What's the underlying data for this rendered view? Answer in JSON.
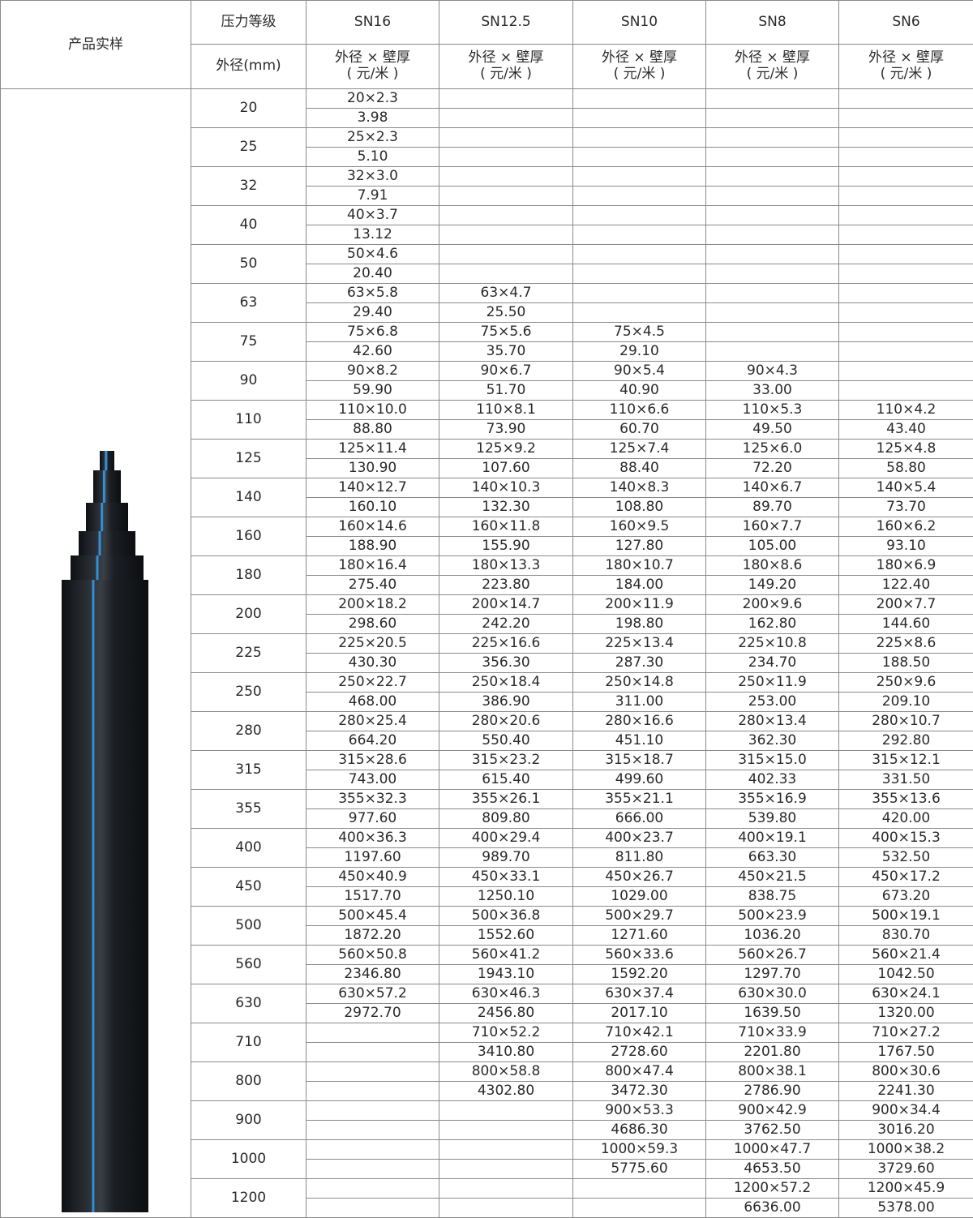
{
  "header": {
    "sample_label": "产品实样",
    "pressure_label": "压力等级",
    "od_label": "外径(mm)",
    "grades": [
      "SN16",
      "SN12.5",
      "SN10",
      "SN8",
      "SN6"
    ],
    "spec_label": "外径 × 壁厚",
    "unit_label": "( 元/米 )"
  },
  "pipe_image": {
    "pipe_color": "#1c1f24",
    "stripe_color": "#2f8fd8"
  },
  "rows": [
    {
      "od": "20",
      "cells": [
        [
          "20×2.3",
          "3.98"
        ],
        [],
        [],
        [],
        []
      ]
    },
    {
      "od": "25",
      "cells": [
        [
          "25×2.3",
          "5.10"
        ],
        [],
        [],
        [],
        []
      ]
    },
    {
      "od": "32",
      "cells": [
        [
          "32×3.0",
          "7.91"
        ],
        [],
        [],
        [],
        []
      ]
    },
    {
      "od": "40",
      "cells": [
        [
          "40×3.7",
          "13.12"
        ],
        [],
        [],
        [],
        []
      ]
    },
    {
      "od": "50",
      "cells": [
        [
          "50×4.6",
          "20.40"
        ],
        [],
        [],
        [],
        []
      ]
    },
    {
      "od": "63",
      "cells": [
        [
          "63×5.8",
          "29.40"
        ],
        [
          "63×4.7",
          "25.50"
        ],
        [],
        [],
        []
      ]
    },
    {
      "od": "75",
      "cells": [
        [
          "75×6.8",
          "42.60"
        ],
        [
          "75×5.6",
          "35.70"
        ],
        [
          "75×4.5",
          "29.10"
        ],
        [],
        []
      ]
    },
    {
      "od": "90",
      "cells": [
        [
          "90×8.2",
          "59.90"
        ],
        [
          "90×6.7",
          "51.70"
        ],
        [
          "90×5.4",
          "40.90"
        ],
        [
          "90×4.3",
          "33.00"
        ],
        []
      ]
    },
    {
      "od": "110",
      "cells": [
        [
          "110×10.0",
          "88.80"
        ],
        [
          "110×8.1",
          "73.90"
        ],
        [
          "110×6.6",
          "60.70"
        ],
        [
          "110×5.3",
          "49.50"
        ],
        [
          "110×4.2",
          "43.40"
        ]
      ]
    },
    {
      "od": "125",
      "cells": [
        [
          "125×11.4",
          "130.90"
        ],
        [
          "125×9.2",
          "107.60"
        ],
        [
          "125×7.4",
          "88.40"
        ],
        [
          "125×6.0",
          "72.20"
        ],
        [
          "125×4.8",
          "58.80"
        ]
      ]
    },
    {
      "od": "140",
      "cells": [
        [
          "140×12.7",
          "160.10"
        ],
        [
          "140×10.3",
          "132.30"
        ],
        [
          "140×8.3",
          "108.80"
        ],
        [
          "140×6.7",
          "89.70"
        ],
        [
          "140×5.4",
          "73.70"
        ]
      ]
    },
    {
      "od": "160",
      "cells": [
        [
          "160×14.6",
          "188.90"
        ],
        [
          "160×11.8",
          "155.90"
        ],
        [
          "160×9.5",
          "127.80"
        ],
        [
          "160×7.7",
          "105.00"
        ],
        [
          "160×6.2",
          "93.10"
        ]
      ]
    },
    {
      "od": "180",
      "cells": [
        [
          "180×16.4",
          "275.40"
        ],
        [
          "180×13.3",
          "223.80"
        ],
        [
          "180×10.7",
          "184.00"
        ],
        [
          "180×8.6",
          "149.20"
        ],
        [
          "180×6.9",
          "122.40"
        ]
      ]
    },
    {
      "od": "200",
      "cells": [
        [
          "200×18.2",
          "298.60"
        ],
        [
          "200×14.7",
          "242.20"
        ],
        [
          "200×11.9",
          "198.80"
        ],
        [
          "200×9.6",
          "162.80"
        ],
        [
          "200×7.7",
          "144.60"
        ]
      ]
    },
    {
      "od": "225",
      "cells": [
        [
          "225×20.5",
          "430.30"
        ],
        [
          "225×16.6",
          "356.30"
        ],
        [
          "225×13.4",
          "287.30"
        ],
        [
          "225×10.8",
          "234.70"
        ],
        [
          "225×8.6",
          "188.50"
        ]
      ]
    },
    {
      "od": "250",
      "cells": [
        [
          "250×22.7",
          "468.00"
        ],
        [
          "250×18.4",
          "386.90"
        ],
        [
          "250×14.8",
          "311.00"
        ],
        [
          "250×11.9",
          "253.00"
        ],
        [
          "250×9.6",
          "209.10"
        ]
      ]
    },
    {
      "od": "280",
      "cells": [
        [
          "280×25.4",
          "664.20"
        ],
        [
          "280×20.6",
          "550.40"
        ],
        [
          "280×16.6",
          "451.10"
        ],
        [
          "280×13.4",
          "362.30"
        ],
        [
          "280×10.7",
          "292.80"
        ]
      ]
    },
    {
      "od": "315",
      "cells": [
        [
          "315×28.6",
          "743.00"
        ],
        [
          "315×23.2",
          "615.40"
        ],
        [
          "315×18.7",
          "499.60"
        ],
        [
          "315×15.0",
          "402.33"
        ],
        [
          "315×12.1",
          "331.50"
        ]
      ]
    },
    {
      "od": "355",
      "cells": [
        [
          "355×32.3",
          "977.60"
        ],
        [
          "355×26.1",
          "809.80"
        ],
        [
          "355×21.1",
          "666.00"
        ],
        [
          "355×16.9",
          "539.80"
        ],
        [
          "355×13.6",
          "420.00"
        ]
      ]
    },
    {
      "od": "400",
      "cells": [
        [
          "400×36.3",
          "1197.60"
        ],
        [
          "400×29.4",
          "989.70"
        ],
        [
          "400×23.7",
          "811.80"
        ],
        [
          "400×19.1",
          "663.30"
        ],
        [
          "400×15.3",
          "532.50"
        ]
      ]
    },
    {
      "od": "450",
      "cells": [
        [
          "450×40.9",
          "1517.70"
        ],
        [
          "450×33.1",
          "1250.10"
        ],
        [
          "450×26.7",
          "1029.00"
        ],
        [
          "450×21.5",
          "838.75"
        ],
        [
          "450×17.2",
          "673.20"
        ]
      ]
    },
    {
      "od": "500",
      "cells": [
        [
          "500×45.4",
          "1872.20"
        ],
        [
          "500×36.8",
          "1552.60"
        ],
        [
          "500×29.7",
          "1271.60"
        ],
        [
          "500×23.9",
          "1036.20"
        ],
        [
          "500×19.1",
          "830.70"
        ]
      ]
    },
    {
      "od": "560",
      "cells": [
        [
          "560×50.8",
          "2346.80"
        ],
        [
          "560×41.2",
          "1943.10"
        ],
        [
          "560×33.6",
          "1592.20"
        ],
        [
          "560×26.7",
          "1297.70"
        ],
        [
          "560×21.4",
          "1042.50"
        ]
      ]
    },
    {
      "od": "630",
      "cells": [
        [
          "630×57.2",
          "2972.70"
        ],
        [
          "630×46.3",
          "2456.80"
        ],
        [
          "630×37.4",
          "2017.10"
        ],
        [
          "630×30.0",
          "1639.50"
        ],
        [
          "630×24.1",
          "1320.00"
        ]
      ]
    },
    {
      "od": "710",
      "cells": [
        [],
        [
          "710×52.2",
          "3410.80"
        ],
        [
          "710×42.1",
          "2728.60"
        ],
        [
          "710×33.9",
          "2201.80"
        ],
        [
          "710×27.2",
          "1767.50"
        ]
      ]
    },
    {
      "od": "800",
      "cells": [
        [],
        [
          "800×58.8",
          "4302.80"
        ],
        [
          "800×47.4",
          "3472.30"
        ],
        [
          "800×38.1",
          "2786.90"
        ],
        [
          "800×30.6",
          "2241.30"
        ]
      ]
    },
    {
      "od": "900",
      "cells": [
        [],
        [],
        [
          "900×53.3",
          "4686.30"
        ],
        [
          "900×42.9",
          "3762.50"
        ],
        [
          "900×34.4",
          "3016.20"
        ]
      ]
    },
    {
      "od": "1000",
      "cells": [
        [],
        [],
        [
          "1000×59.3",
          "5775.60"
        ],
        [
          "1000×47.7",
          "4653.50"
        ],
        [
          "1000×38.2",
          "3729.60"
        ]
      ]
    },
    {
      "od": "1200",
      "cells": [
        [],
        [],
        [],
        [
          "1200×57.2",
          "6636.00"
        ],
        [
          "1200×45.9",
          "5378.00"
        ]
      ]
    }
  ]
}
